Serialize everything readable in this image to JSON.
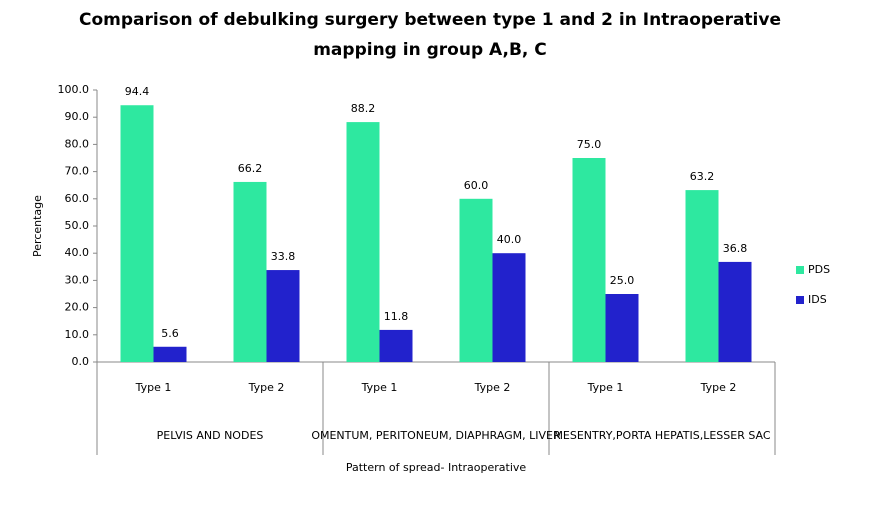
{
  "chart_data": {
    "type": "bar",
    "title": [
      "Comparison of debulking surgery between type 1 and 2 in Intraoperative",
      "mapping in group A,B, C"
    ],
    "x_label": "Pattern of spread- Intraoperative",
    "y_label": "Percentage",
    "categories": [
      "Type 1",
      "Type 2",
      "Type 1",
      "Type 2",
      "Type 1",
      "Type 2"
    ],
    "groups": [
      "PELVIS AND NODES",
      "OMENTUM, PERITONEUM, DIAPHRAGM, LIVER",
      "MESENTRY,PORTA HEPATIS,LESSER SAC"
    ],
    "series": [
      {
        "name": "PDS",
        "color": "#2ee8a0",
        "values": [
          94.4,
          66.2,
          88.2,
          60,
          75,
          63.2
        ],
        "value_labels": [
          "94.4",
          "66.2",
          "88.2",
          "60.0",
          "75.0",
          "63.2"
        ]
      },
      {
        "name": "IDS",
        "color": "#2222cc",
        "values": [
          5.6,
          33.8,
          11.8,
          40,
          25,
          36.8
        ],
        "value_labels": [
          "5.6",
          "33.8",
          "11.8",
          "40.0",
          "25.0",
          "36.8"
        ]
      }
    ],
    "ylim": [
      0,
      100
    ],
    "yticks": [
      {
        "value": 0,
        "label": "0.0"
      },
      {
        "value": 10,
        "label": "10.0"
      },
      {
        "value": 20,
        "label": "20.0"
      },
      {
        "value": 30,
        "label": "30.0"
      },
      {
        "value": 40,
        "label": "40.0"
      },
      {
        "value": 50,
        "label": "50.0"
      },
      {
        "value": 60,
        "label": "60.0"
      },
      {
        "value": 70,
        "label": "70.0"
      },
      {
        "value": 80,
        "label": "80.0"
      },
      {
        "value": 90,
        "label": "90.0"
      },
      {
        "value": 100,
        "label": "100.0"
      }
    ],
    "grid": false,
    "legend": "right"
  }
}
